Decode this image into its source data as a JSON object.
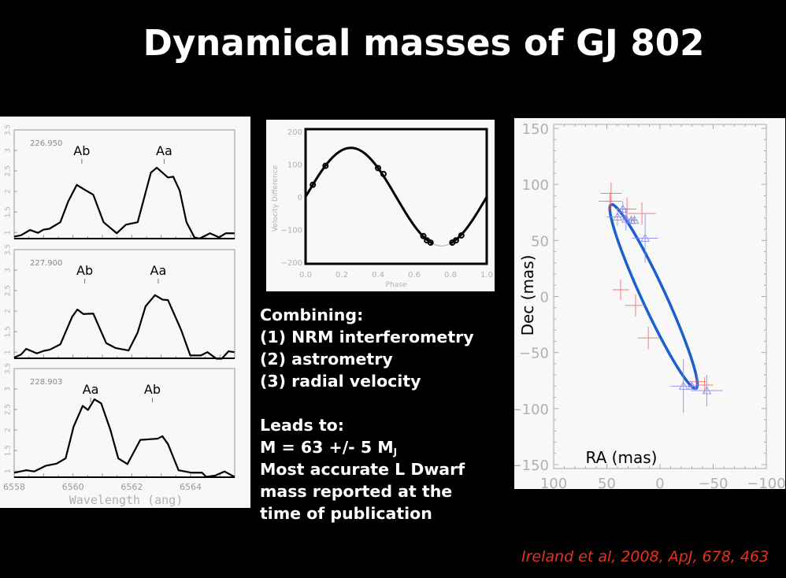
{
  "slide": {
    "title": "Dynamical masses of GJ 802",
    "text_lines": [
      "Combining:",
      "(1) NRM interferometry",
      "(2) astrometry",
      "(3) radial velocity",
      "",
      "Leads to:",
      "M = 63 +/- 5 M",
      "Most accurate L Dwarf",
      "mass reported at the",
      "time of publication"
    ],
    "mass_subscript": "J",
    "citation": "Ireland et al, 2008, ApJ, 678, 463",
    "colors": {
      "background": "#000000",
      "text": "#ffffff",
      "citation": "#e8321e",
      "orbit": "#1a5fd0",
      "red_points": "#f06060",
      "blue_points": "#8080f0"
    }
  },
  "chart_data": [
    {
      "type": "line",
      "xlabel": "Wavelength (ang)",
      "xlim": [
        6558,
        6565.5
      ],
      "ylim": [
        0.85,
        3.5
      ],
      "xticks": [
        "6558",
        "6560",
        "6562",
        "6564"
      ],
      "yticks": [
        "1",
        "1.5",
        "2",
        "2.5",
        "3",
        "3.5"
      ],
      "panels": [
        {
          "label": "226.950",
          "markers": [
            {
              "text": "Ab",
              "x": 6560.3
            },
            {
              "text": "Aa",
              "x": 6563.1
            }
          ],
          "points": [
            [
              6558,
              0.9
            ],
            [
              6558.23,
              0.93
            ],
            [
              6558.54,
              1.06
            ],
            [
              6558.81,
              0.99
            ],
            [
              6559.0,
              1.07
            ],
            [
              6559.2,
              1.09
            ],
            [
              6559.57,
              1.25
            ],
            [
              6559.84,
              1.76
            ],
            [
              6560.13,
              2.16
            ],
            [
              6560.38,
              2.05
            ],
            [
              6560.69,
              1.92
            ],
            [
              6561.04,
              1.25
            ],
            [
              6561.49,
              0.98
            ],
            [
              6561.8,
              1.19
            ],
            [
              6562.2,
              1.25
            ],
            [
              6562.65,
              2.46
            ],
            [
              6562.85,
              2.58
            ],
            [
              6563.23,
              2.34
            ],
            [
              6563.41,
              2.36
            ],
            [
              6563.63,
              2.02
            ],
            [
              6563.86,
              1.25
            ],
            [
              6564.13,
              0.88
            ],
            [
              6564.3,
              0.85
            ],
            [
              6564.66,
              0.98
            ],
            [
              6564.97,
              0.88
            ],
            [
              6565.2,
              0.98
            ],
            [
              6565.49,
              0.98
            ]
          ]
        },
        {
          "label": "227.900",
          "markers": [
            {
              "text": "Ab",
              "x": 6560.4
            },
            {
              "text": "Aa",
              "x": 6562.9
            }
          ],
          "points": [
            [
              6558,
              0.87
            ],
            [
              6558.23,
              0.94
            ],
            [
              6558.41,
              1.08
            ],
            [
              6558.77,
              0.97
            ],
            [
              6559.0,
              1.03
            ],
            [
              6559.21,
              1.06
            ],
            [
              6559.57,
              1.19
            ],
            [
              6559.97,
              1.86
            ],
            [
              6560.15,
              2.04
            ],
            [
              6560.35,
              1.93
            ],
            [
              6560.69,
              1.94
            ],
            [
              6561.13,
              1.22
            ],
            [
              6561.45,
              1.1
            ],
            [
              6561.89,
              1.04
            ],
            [
              6562.2,
              1.48
            ],
            [
              6562.47,
              2.12
            ],
            [
              6562.79,
              2.39
            ],
            [
              6563.05,
              2.28
            ],
            [
              6563.23,
              2.27
            ],
            [
              6563.68,
              1.54
            ],
            [
              6563.99,
              0.92
            ],
            [
              6564.35,
              0.92
            ],
            [
              6564.57,
              1.0
            ],
            [
              6564.88,
              0.84
            ],
            [
              6565.06,
              0.84
            ],
            [
              6565.29,
              1.02
            ],
            [
              6565.49,
              1.0
            ]
          ]
        },
        {
          "label": "228.903",
          "markers": [
            {
              "text": "Aa",
              "x": 6560.6
            },
            {
              "text": "Ab",
              "x": 6562.7
            }
          ],
          "points": [
            [
              6558,
              0.96
            ],
            [
              6558.41,
              1.02
            ],
            [
              6558.68,
              0.99
            ],
            [
              6559.08,
              1.13
            ],
            [
              6559.44,
              1.18
            ],
            [
              6559.75,
              1.31
            ],
            [
              6560.02,
              2.08
            ],
            [
              6560.33,
              2.59
            ],
            [
              6560.51,
              2.49
            ],
            [
              6560.73,
              2.75
            ],
            [
              6560.96,
              2.65
            ],
            [
              6561.27,
              2.01
            ],
            [
              6561.54,
              1.31
            ],
            [
              6561.85,
              1.17
            ],
            [
              6562.29,
              1.76
            ],
            [
              6562.88,
              1.79
            ],
            [
              6563.04,
              1.85
            ],
            [
              6563.23,
              1.66
            ],
            [
              6563.59,
              1.02
            ],
            [
              6564.04,
              0.96
            ],
            [
              6564.39,
              0.96
            ],
            [
              6564.53,
              0.86
            ],
            [
              6564.84,
              0.89
            ],
            [
              6565.15,
              0.99
            ],
            [
              6565.49,
              0.86
            ]
          ]
        }
      ]
    },
    {
      "type": "line",
      "xlabel": "Phase",
      "ylabel": "Velocity Difference",
      "xlim": [
        0,
        1
      ],
      "ylim": [
        -200,
        200
      ],
      "xticks": [
        "0.0",
        "0.2",
        "0.4",
        "0.6",
        "0.8",
        "1.0"
      ],
      "yticks": [
        "200",
        "100",
        "0",
        "−100",
        "−200"
      ],
      "curve_amplitude": 150,
      "points": [
        [
          0.04,
          37
        ],
        [
          0.11,
          95
        ],
        [
          0.4,
          88
        ],
        [
          0.43,
          70
        ],
        [
          0.65,
          -120
        ],
        [
          0.67,
          -133
        ],
        [
          0.69,
          -140
        ],
        [
          0.81,
          -140
        ],
        [
          0.83,
          -133
        ],
        [
          0.86,
          -118
        ]
      ]
    },
    {
      "type": "scatter",
      "xlabel": "RA (mas)",
      "ylabel": "Dec (mas)",
      "xlim": [
        100,
        -100
      ],
      "ylim": [
        -150,
        150
      ],
      "xticks": [
        "100",
        "50",
        "0",
        "−50",
        "−100"
      ],
      "yticks": [
        "150",
        "100",
        "50",
        "0",
        "−50",
        "−100",
        "−150"
      ],
      "orbit": {
        "center": [
          6,
          0
        ],
        "semi_major_vector": [
          40,
          82
        ],
        "semi_minor": 11
      },
      "series": [
        {
          "marker": "cross",
          "color": "#f06060",
          "points": [
            [
              46,
              92,
              10,
              10
            ],
            [
              47,
              85,
              11,
              8
            ],
            [
              31,
              78,
              9,
              10
            ],
            [
              17,
              74,
              13,
              10
            ],
            [
              37,
              6,
              8,
              9
            ],
            [
              23,
              -8,
              10,
              10
            ],
            [
              11,
              -37,
              10,
              10
            ],
            [
              -35,
              -76,
              8,
              6
            ],
            [
              -42,
              -79,
              8,
              7
            ]
          ]
        },
        {
          "marker": "triangle",
          "color": "#8080f0",
          "points": [
            [
              40,
              71,
              10,
              8
            ],
            [
              35,
              78,
              6,
              7
            ],
            [
              32,
              69,
              4,
              10
            ],
            [
              27,
              68,
              4,
              3
            ],
            [
              24,
              68,
              3,
              3
            ],
            [
              14,
              52,
              12,
              22
            ],
            [
              -22,
              -80,
              12,
              24
            ],
            [
              -30,
              -80,
              4,
              3
            ],
            [
              -44,
              -84,
              15,
              14
            ]
          ]
        }
      ]
    }
  ]
}
